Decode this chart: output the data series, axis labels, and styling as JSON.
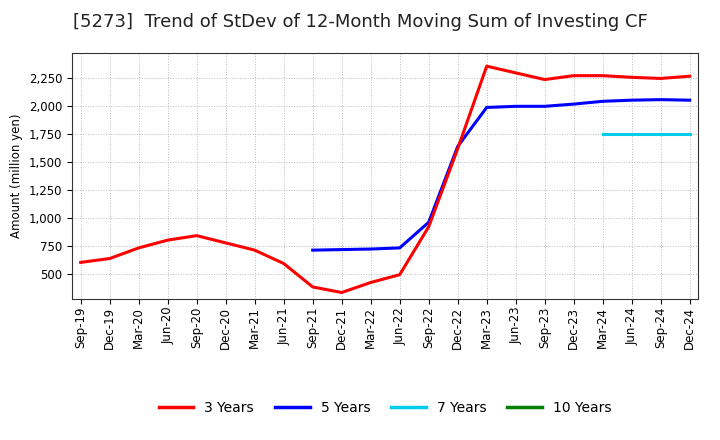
{
  "title": "[5273]  Trend of StDev of 12-Month Moving Sum of Investing CF",
  "ylabel": "Amount (million yen)",
  "background_color": "#ffffff",
  "grid_color": "#bbbbbb",
  "x_labels": [
    "Sep-19",
    "Dec-19",
    "Mar-20",
    "Jun-20",
    "Sep-20",
    "Dec-20",
    "Mar-21",
    "Jun-21",
    "Sep-21",
    "Dec-21",
    "Mar-22",
    "Jun-22",
    "Sep-22",
    "Dec-22",
    "Mar-23",
    "Jun-23",
    "Sep-23",
    "Dec-23",
    "Mar-24",
    "Jun-24",
    "Sep-24",
    "Dec-24"
  ],
  "series_3y": {
    "label": "3 Years",
    "color": "#ff0000",
    "x": [
      0,
      1,
      2,
      3,
      4,
      5,
      6,
      7,
      8,
      9,
      10,
      11,
      12,
      13,
      14,
      15,
      16,
      17,
      18,
      19,
      20,
      21
    ],
    "y": [
      600,
      635,
      730,
      800,
      840,
      775,
      710,
      590,
      380,
      330,
      420,
      490,
      920,
      1620,
      2360,
      2300,
      2240,
      2275,
      2275,
      2260,
      2250,
      2270
    ]
  },
  "series_5y": {
    "label": "5 Years",
    "color": "#0000ff",
    "x": [
      8,
      9,
      10,
      11,
      12,
      13,
      14,
      15,
      16,
      17,
      18,
      19,
      20,
      21
    ],
    "y": [
      710,
      715,
      720,
      730,
      960,
      1640,
      1990,
      2000,
      2000,
      2020,
      2045,
      2055,
      2060,
      2055
    ]
  },
  "series_7y": {
    "label": "7 Years",
    "color": "#00ccee",
    "x": [
      18,
      19,
      20,
      21
    ],
    "y": [
      1750,
      1750,
      1750,
      1750
    ]
  },
  "series_10y": {
    "label": "10 Years",
    "color": "#008000",
    "x": [],
    "y": []
  },
  "ylim": [
    270,
    2480
  ],
  "yticks": [
    500,
    750,
    1000,
    1250,
    1500,
    1750,
    2000,
    2250
  ],
  "title_fontsize": 13,
  "legend_fontsize": 10,
  "axis_fontsize": 8.5
}
